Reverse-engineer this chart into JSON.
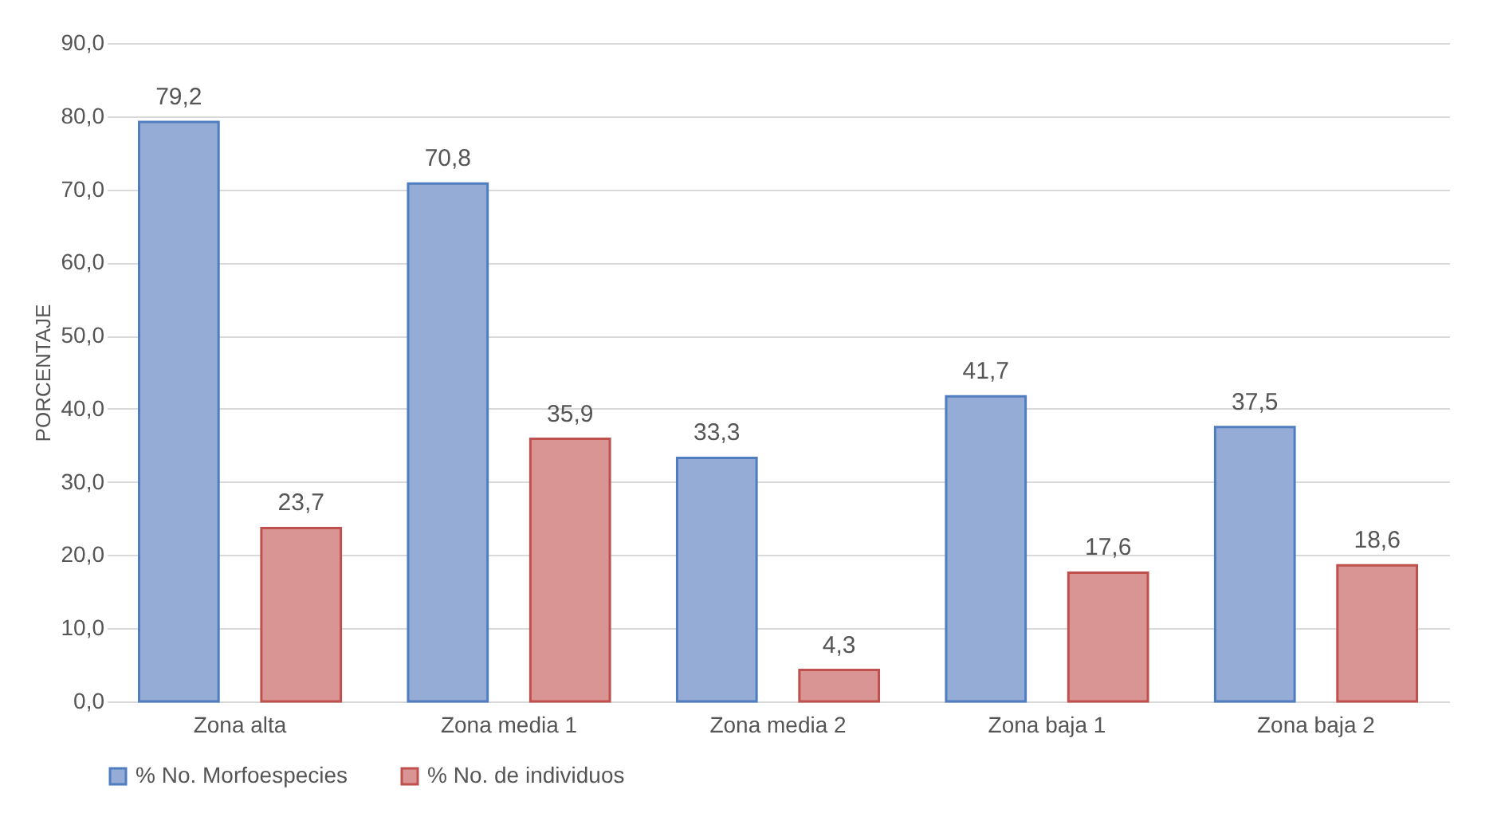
{
  "chart_data": {
    "type": "bar",
    "ylabel": "PORCENTAJE",
    "categories": [
      "Zona alta",
      "Zona media 1",
      "Zona media 2",
      "Zona baja 1",
      "Zona baja 2"
    ],
    "series": [
      {
        "name": "% No. Morfoespecies",
        "color": "#94acd6",
        "values": [
          79.2,
          70.8,
          33.3,
          41.7,
          37.5
        ],
        "value_labels": [
          "79,2",
          "70,8",
          "33,3",
          "41,7",
          "37,5"
        ]
      },
      {
        "name": "% No. de individuos",
        "color": "#d99594",
        "values": [
          23.7,
          35.9,
          4.3,
          17.6,
          18.6
        ],
        "value_labels": [
          "23,7",
          "35,9",
          "4,3",
          "17,6",
          "18,6"
        ]
      }
    ],
    "ylim": [
      0,
      90
    ],
    "yticks": [
      {
        "value": 0,
        "label": "0,0"
      },
      {
        "value": 10,
        "label": "10,0"
      },
      {
        "value": 20,
        "label": "20,0"
      },
      {
        "value": 30,
        "label": "30,0"
      },
      {
        "value": 40,
        "label": "40,0"
      },
      {
        "value": 50,
        "label": "50,0"
      },
      {
        "value": 60,
        "label": "60,0"
      },
      {
        "value": 70,
        "label": "70,0"
      },
      {
        "value": 80,
        "label": "80,0"
      },
      {
        "value": 90,
        "label": "90,0"
      }
    ],
    "grid": "y",
    "legend": "bottom"
  }
}
